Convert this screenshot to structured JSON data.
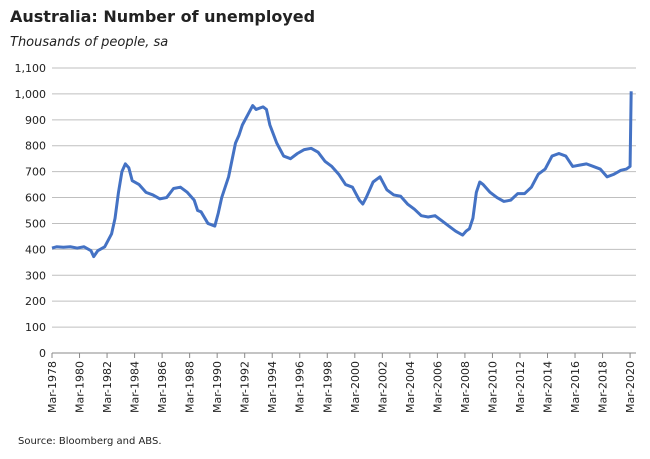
{
  "chart_data": {
    "type": "line",
    "title": "Australia: Number of unemployed",
    "subtitle": "Thousands of people, sa",
    "source": "Source: Bloomberg and ABS.",
    "color": "#4472c4",
    "grid": true,
    "x": [
      1978.17,
      1978.5,
      1979,
      1979.5,
      1980,
      1980.5,
      1981,
      1981.2,
      1981.5,
      1982,
      1982.5,
      1982.75,
      1983,
      1983.25,
      1983.5,
      1983.75,
      1984,
      1984.5,
      1985,
      1985.5,
      1986,
      1986.5,
      1987,
      1987.5,
      1988,
      1988.5,
      1988.75,
      1989,
      1989.5,
      1990,
      1990.25,
      1990.5,
      1991,
      1991.5,
      1991.75,
      1992,
      1992.5,
      1992.75,
      1993,
      1993.5,
      1993.75,
      1994,
      1994.5,
      1995,
      1995.5,
      1996,
      1996.5,
      1997,
      1997.5,
      1998,
      1998.5,
      1999,
      1999.5,
      2000,
      2000.5,
      2000.75,
      2001,
      2001.5,
      2002,
      2002.5,
      2003,
      2003.5,
      2004,
      2004.5,
      2005,
      2005.5,
      2006,
      2006.5,
      2007,
      2007.5,
      2008,
      2008.25,
      2008.5,
      2008.75,
      2009,
      2009.25,
      2009.5,
      2010,
      2010.5,
      2011,
      2011.5,
      2012,
      2012.5,
      2013,
      2013.5,
      2014,
      2014.5,
      2015,
      2015.5,
      2016,
      2016.5,
      2017,
      2017.5,
      2018,
      2018.5,
      2019,
      2019.5,
      2019.9,
      2020.17,
      2020.25
    ],
    "values": [
      405,
      410,
      408,
      410,
      405,
      410,
      395,
      372,
      395,
      410,
      460,
      520,
      620,
      700,
      730,
      715,
      665,
      650,
      620,
      610,
      595,
      600,
      635,
      640,
      620,
      590,
      550,
      545,
      500,
      490,
      540,
      600,
      680,
      810,
      840,
      880,
      930,
      955,
      940,
      950,
      940,
      880,
      810,
      760,
      750,
      770,
      785,
      790,
      775,
      740,
      720,
      690,
      650,
      640,
      590,
      575,
      600,
      660,
      680,
      630,
      610,
      605,
      575,
      555,
      530,
      525,
      530,
      510,
      490,
      470,
      455,
      470,
      480,
      520,
      620,
      660,
      650,
      620,
      600,
      585,
      590,
      615,
      615,
      640,
      690,
      710,
      760,
      770,
      760,
      720,
      725,
      730,
      720,
      710,
      680,
      690,
      705,
      710,
      720,
      1010
    ],
    "xlim": [
      1978.17,
      2020.6
    ],
    "xticks": [
      {
        "value": 1978.17,
        "label": "Mar-1978"
      },
      {
        "value": 1980.17,
        "label": "Mar-1980"
      },
      {
        "value": 1982.17,
        "label": "Mar-1982"
      },
      {
        "value": 1984.17,
        "label": "Mar-1984"
      },
      {
        "value": 1986.17,
        "label": "Mar-1986"
      },
      {
        "value": 1988.17,
        "label": "Mar-1988"
      },
      {
        "value": 1990.17,
        "label": "Mar-1990"
      },
      {
        "value": 1992.17,
        "label": "Mar-1992"
      },
      {
        "value": 1994.17,
        "label": "Mar-1994"
      },
      {
        "value": 1996.17,
        "label": "Mar-1996"
      },
      {
        "value": 1998.17,
        "label": "Mar-1998"
      },
      {
        "value": 2000.17,
        "label": "Mar-2000"
      },
      {
        "value": 2002.17,
        "label": "Mar-2002"
      },
      {
        "value": 2004.17,
        "label": "Mar-2004"
      },
      {
        "value": 2006.17,
        "label": "Mar-2006"
      },
      {
        "value": 2008.17,
        "label": "Mar-2008"
      },
      {
        "value": 2010.17,
        "label": "Mar-2010"
      },
      {
        "value": 2012.17,
        "label": "Mar-2012"
      },
      {
        "value": 2014.17,
        "label": "Mar-2014"
      },
      {
        "value": 2016.17,
        "label": "Mar-2016"
      },
      {
        "value": 2018.17,
        "label": "Mar-2018"
      },
      {
        "value": 2020.17,
        "label": "Mar-2020"
      }
    ],
    "ylim": [
      0,
      1100
    ],
    "yticks": [
      0,
      100,
      200,
      300,
      400,
      500,
      600,
      700,
      800,
      900,
      {
        "value": 1000,
        "label": "1,000"
      },
      {
        "value": 1100,
        "label": "1,100"
      }
    ]
  }
}
